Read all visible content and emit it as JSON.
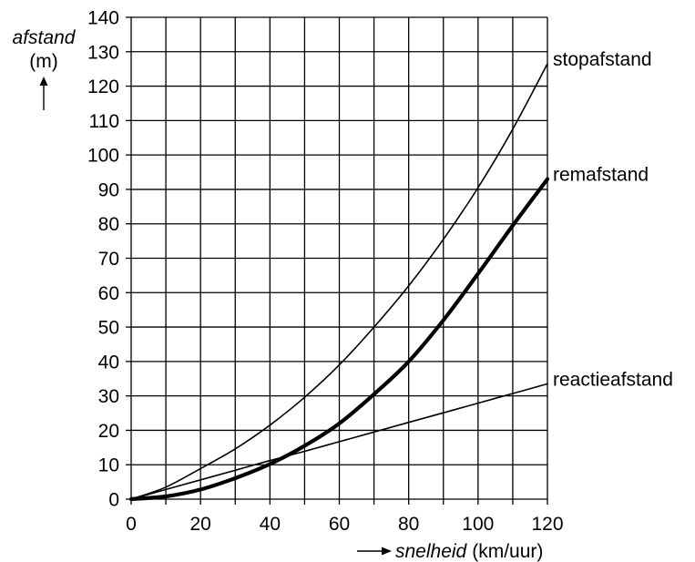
{
  "chart_data": {
    "type": "line",
    "ylabel_line1": "afstand",
    "ylabel_line2": "(m)",
    "xlabel_word": "snelheid",
    "xlabel_unit": "(km/uur)",
    "xlim": [
      0,
      120
    ],
    "ylim": [
      0,
      140
    ],
    "x_ticks": [
      "0",
      "20",
      "40",
      "60",
      "80",
      "100",
      "120"
    ],
    "y_ticks": [
      "0",
      "10",
      "20",
      "30",
      "40",
      "50",
      "60",
      "70",
      "80",
      "90",
      "100",
      "110",
      "120",
      "130",
      "140"
    ],
    "grid": true,
    "x": [
      0,
      10,
      20,
      30,
      40,
      50,
      60,
      70,
      80,
      90,
      100,
      110,
      120
    ],
    "series": [
      {
        "name": "stopafstand",
        "values": [
          0,
          3.5,
          8.9,
          14.6,
          21.5,
          29.6,
          39.0,
          50.0,
          62.0,
          75.5,
          90.5,
          107.5,
          126.5
        ],
        "weight": "thin"
      },
      {
        "name": "remafstand",
        "values": [
          0,
          0.8,
          2.8,
          6.1,
          10.2,
          15.5,
          22.0,
          30.5,
          40.0,
          52.0,
          65.5,
          79.5,
          93.0
        ],
        "weight": "thick"
      },
      {
        "name": "reactieafstand",
        "values": [
          0,
          2.8,
          5.6,
          8.4,
          11.2,
          13.9,
          16.7,
          19.5,
          22.3,
          25.1,
          27.9,
          30.7,
          33.5
        ],
        "weight": "thin"
      }
    ]
  }
}
